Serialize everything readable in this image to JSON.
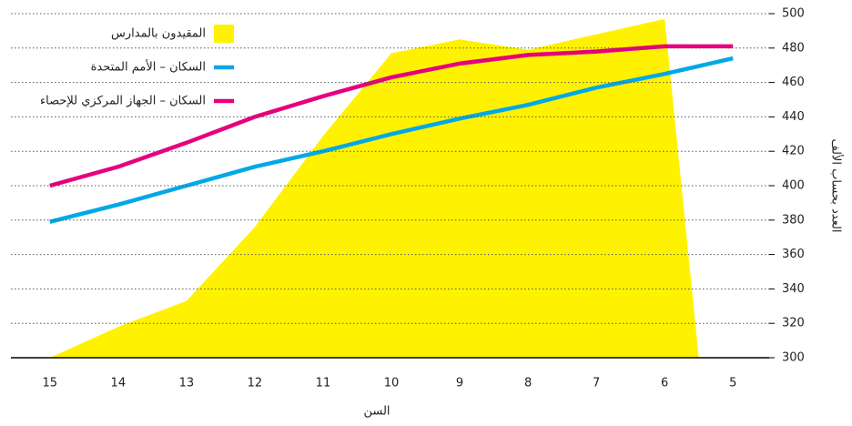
{
  "chart_data": {
    "type": "line",
    "xlabel": "السن",
    "ylabel": "العدد بحساب الألف",
    "xlim": [
      15.57,
      4.47
    ],
    "xticks": [
      15,
      14,
      13,
      12,
      11,
      10,
      9,
      8,
      7,
      6,
      5
    ],
    "ylim": [
      300,
      500
    ],
    "yticks": [
      300,
      320,
      340,
      360,
      380,
      400,
      420,
      440,
      460,
      480,
      500
    ],
    "grid": true,
    "legend": "upper left",
    "series": [
      {
        "name": "المقيدون بالمدارس",
        "kind": "area",
        "color": "#fff200",
        "x": [
          15,
          14,
          13,
          12,
          11,
          10,
          9,
          8,
          7,
          6,
          5.5
        ],
        "values": [
          300,
          318,
          333,
          376,
          429,
          477,
          485,
          479,
          488,
          497,
          300
        ]
      },
      {
        "name": "السكان – الأمم المتحدة",
        "kind": "line",
        "color": "#00a9e6",
        "x": [
          15,
          14,
          13,
          12,
          11,
          10,
          9,
          8,
          7,
          6,
          5
        ],
        "values": [
          379,
          389,
          400,
          411,
          420,
          430,
          439,
          447,
          457,
          465,
          474
        ]
      },
      {
        "name": "السكان – الجهاز المركزي للإحصاء",
        "kind": "line",
        "color": "#e6007e",
        "x": [
          15,
          14,
          13,
          12,
          11,
          10,
          9,
          8,
          7,
          6,
          5
        ],
        "values": [
          400,
          411,
          425,
          440,
          452,
          463,
          471,
          476,
          478,
          481,
          481
        ]
      }
    ]
  }
}
